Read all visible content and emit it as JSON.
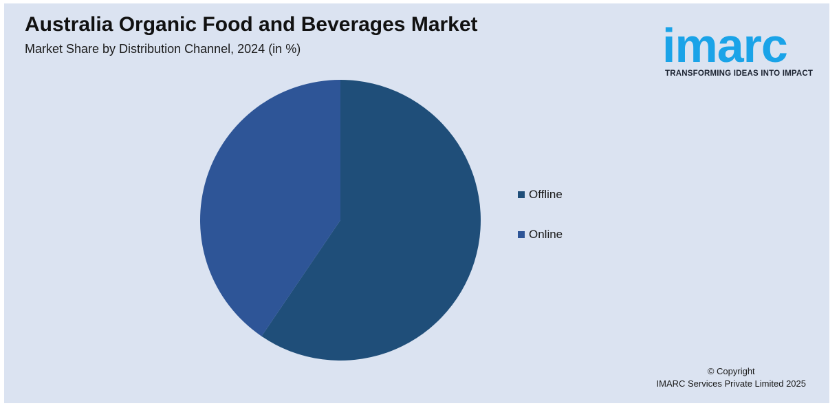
{
  "header": {
    "title": "Australia Organic Food and Beverages Market",
    "subtitle": "Market Share by Distribution Channel, 2024 (in %)"
  },
  "logo": {
    "word": "imarc",
    "tagline": "TRANSFORMING IDEAS INTO IMPACT",
    "color": "#1aa3e8"
  },
  "footer": {
    "copyright_line1": "© Copyright",
    "copyright_line2": "IMARC Services Private Limited 2025"
  },
  "chart_data": {
    "type": "pie",
    "title": "Australia Organic Food and Beverages Market",
    "subtitle": "Market Share by Distribution Channel, 2024 (in %)",
    "categories": [
      "Offline",
      "Online"
    ],
    "values": [
      59.5,
      40.5
    ],
    "colors": [
      "#1f4e79",
      "#2e5597"
    ],
    "start_angle_deg": 0,
    "direction": "clockwise",
    "legend_position": "right"
  }
}
